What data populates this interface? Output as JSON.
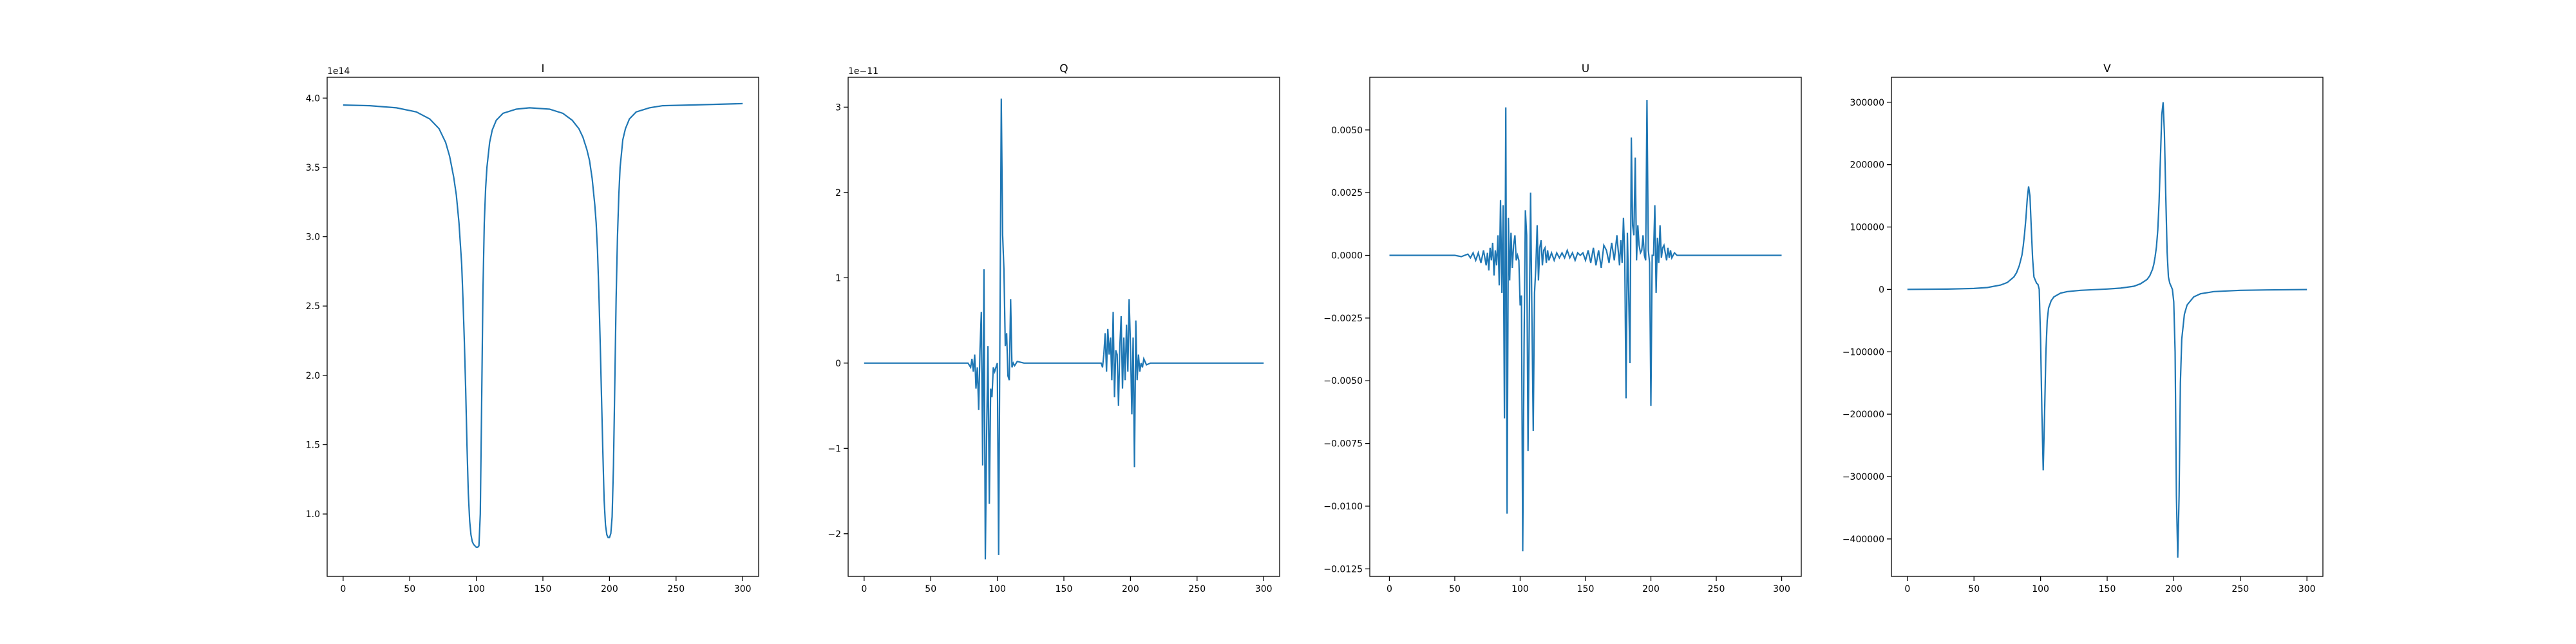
{
  "chart_data": [
    {
      "type": "line",
      "title": "I",
      "offset": "1e14",
      "xlim": [
        -12,
        312
      ],
      "ylim": [
        0.55,
        4.15
      ],
      "x_ticks": [
        0,
        50,
        100,
        150,
        200,
        250,
        300
      ],
      "x_tick_labels": [
        "0",
        "50",
        "100",
        "150",
        "200",
        "250",
        "300"
      ],
      "y_ticks": [
        1.0,
        1.5,
        2.0,
        2.5,
        3.0,
        3.5,
        4.0
      ],
      "y_tick_labels": [
        "1.0",
        "1.5",
        "2.0",
        "2.5",
        "3.0",
        "3.5",
        "4.0"
      ],
      "series": [
        {
          "color": "#1f77b4",
          "x": [
            0,
            20,
            40,
            55,
            65,
            72,
            77,
            80,
            83,
            85,
            87,
            89,
            90,
            91,
            92,
            93,
            94,
            95,
            96,
            97,
            98,
            99,
            100,
            101,
            102,
            103,
            104,
            105,
            106,
            107,
            108,
            110,
            112,
            115,
            120,
            130,
            140,
            155,
            165,
            172,
            177,
            180,
            183,
            185,
            187,
            189,
            190,
            191,
            192,
            193,
            194,
            195,
            196,
            197,
            198,
            199,
            200,
            201,
            202,
            203,
            204,
            205,
            206,
            207,
            208,
            210,
            212,
            215,
            220,
            230,
            240,
            260,
            280,
            300
          ],
          "values": [
            3.95,
            3.945,
            3.93,
            3.9,
            3.85,
            3.78,
            3.68,
            3.58,
            3.43,
            3.3,
            3.1,
            2.8,
            2.55,
            2.25,
            1.9,
            1.5,
            1.15,
            0.95,
            0.85,
            0.8,
            0.78,
            0.77,
            0.76,
            0.76,
            0.77,
            1.0,
            1.8,
            2.6,
            3.1,
            3.35,
            3.5,
            3.68,
            3.77,
            3.84,
            3.89,
            3.92,
            3.93,
            3.92,
            3.89,
            3.84,
            3.78,
            3.72,
            3.63,
            3.55,
            3.42,
            3.23,
            3.1,
            2.9,
            2.6,
            2.25,
            1.85,
            1.45,
            1.1,
            0.92,
            0.85,
            0.83,
            0.83,
            0.86,
            0.98,
            1.35,
            1.95,
            2.55,
            3.0,
            3.3,
            3.5,
            3.7,
            3.78,
            3.85,
            3.9,
            3.93,
            3.945,
            3.95,
            3.955,
            3.96
          ]
        }
      ]
    },
    {
      "type": "line",
      "title": "Q",
      "offset": "1e−11",
      "xlim": [
        -12,
        312
      ],
      "ylim": [
        -2.5,
        3.35
      ],
      "x_ticks": [
        0,
        50,
        100,
        150,
        200,
        250,
        300
      ],
      "x_tick_labels": [
        "0",
        "50",
        "100",
        "150",
        "200",
        "250",
        "300"
      ],
      "y_ticks": [
        -2,
        -1,
        0,
        1,
        2,
        3
      ],
      "y_tick_labels": [
        "−2",
        "−1",
        "0",
        "1",
        "2",
        "3"
      ],
      "series": [
        {
          "color": "#1f77b4",
          "x": [
            0,
            40,
            70,
            78,
            80,
            81,
            82,
            83,
            84,
            85,
            86,
            87,
            88,
            89,
            90,
            91,
            92,
            93,
            94,
            95,
            96,
            97,
            98,
            99,
            100,
            101,
            102,
            103,
            104,
            105,
            106,
            107,
            108,
            109,
            110,
            111,
            112,
            113,
            115,
            120,
            130,
            150,
            170,
            178,
            179,
            180,
            181,
            182,
            183,
            184,
            185,
            186,
            187,
            188,
            189,
            190,
            191,
            192,
            193,
            194,
            195,
            196,
            197,
            198,
            199,
            200,
            201,
            202,
            203,
            204,
            205,
            206,
            207,
            208,
            209,
            210,
            212,
            215,
            220,
            240,
            270,
            300
          ],
          "values": [
            0,
            0,
            0,
            0.0,
            -0.05,
            0.05,
            -0.1,
            0.1,
            -0.3,
            -0.05,
            -0.55,
            0.15,
            0.6,
            -1.2,
            1.1,
            -2.3,
            -0.8,
            0.2,
            -1.65,
            -0.3,
            -0.4,
            -0.05,
            -0.1,
            -0.05,
            0.0,
            -2.25,
            0.4,
            3.1,
            1.5,
            1.1,
            0.2,
            0.35,
            -0.15,
            -0.2,
            0.75,
            -0.05,
            0.0,
            -0.03,
            0.02,
            0.0,
            0.0,
            0.0,
            0.0,
            0.0,
            -0.05,
            0.1,
            0.35,
            -0.1,
            0.4,
            0.1,
            0.3,
            -0.2,
            0.6,
            -0.4,
            0.15,
            0.1,
            -0.5,
            0.2,
            0.55,
            -0.3,
            0.3,
            -0.2,
            0.45,
            -0.1,
            0.75,
            0.2,
            -0.6,
            0.3,
            -1.22,
            0.5,
            -0.2,
            0.1,
            -0.1,
            0.0,
            -0.05,
            0.05,
            -0.02,
            0.0,
            0.0,
            0.0,
            0.0,
            0.0
          ]
        }
      ]
    },
    {
      "type": "line",
      "title": "U",
      "offset": "",
      "xlim": [
        -15,
        315
      ],
      "ylim": [
        -0.0128,
        0.0071
      ],
      "x_ticks": [
        0,
        50,
        100,
        150,
        200,
        250,
        300
      ],
      "x_tick_labels": [
        "0",
        "50",
        "100",
        "150",
        "200",
        "250",
        "300"
      ],
      "y_ticks": [
        -0.0125,
        -0.01,
        -0.0075,
        -0.005,
        -0.0025,
        0.0,
        0.0025,
        0.005
      ],
      "y_tick_labels": [
        "−0.0125",
        "−0.0100",
        "−0.0075",
        "−0.0050",
        "−0.0025",
        "0.0000",
        "0.0025",
        "0.0050"
      ],
      "series": [
        {
          "color": "#1f77b4",
          "x": [
            0,
            10,
            20,
            30,
            40,
            50,
            55,
            60,
            62,
            64,
            66,
            68,
            70,
            72,
            74,
            75,
            76,
            77,
            78,
            79,
            80,
            81,
            82,
            83,
            84,
            85,
            86,
            87,
            88,
            89,
            90,
            91,
            92,
            93,
            94,
            95,
            96,
            97,
            98,
            99,
            100,
            101,
            102,
            103,
            104,
            105,
            106,
            107,
            108,
            109,
            110,
            111,
            112,
            113,
            114,
            115,
            116,
            117,
            118,
            119,
            120,
            121,
            122,
            124,
            126,
            128,
            130,
            132,
            134,
            136,
            138,
            140,
            142,
            144,
            146,
            148,
            150,
            152,
            154,
            156,
            158,
            160,
            162,
            164,
            166,
            168,
            170,
            172,
            174,
            176,
            177,
            178,
            179,
            180,
            181,
            182,
            183,
            184,
            185,
            186,
            187,
            188,
            189,
            190,
            191,
            192,
            193,
            194,
            195,
            196,
            197,
            198,
            199,
            200,
            201,
            202,
            203,
            204,
            205,
            206,
            207,
            208,
            209,
            210,
            211,
            212,
            213,
            214,
            215,
            216,
            218,
            220,
            225,
            230,
            240,
            260,
            280,
            300
          ],
          "values": [
            0.0,
            0.0,
            0.0,
            0.0,
            0.0,
            0.0,
            -5e-05,
            5e-05,
            -0.0001,
            0.0001,
            -0.0002,
            0.0001,
            -0.0003,
            0.0002,
            -0.0004,
            0.0001,
            -0.0006,
            0.0003,
            -0.0002,
            0.0005,
            -0.0008,
            0.0002,
            -0.0004,
            0.0008,
            -0.0012,
            0.0022,
            -0.0015,
            0.002,
            -0.0065,
            0.0059,
            -0.0103,
            0.0015,
            -0.001,
            0.0009,
            -0.0005,
            0.0004,
            0.0008,
            -0.0002,
            0.0,
            -0.0002,
            -0.002,
            -0.0016,
            -0.0118,
            -0.0035,
            0.0018,
            0.0008,
            -0.0078,
            -0.0025,
            0.0025,
            -0.0025,
            -0.007,
            -0.0015,
            -0.0005,
            0.0012,
            -0.001,
            0.0003,
            0.0006,
            -0.0004,
            0.0002,
            0.0003,
            -0.0003,
            0.0002,
            -0.0002,
            0.0001,
            -0.0002,
            0.0001,
            -0.0001,
            0.0001,
            -0.0001,
            0.0002,
            -0.0001,
            0.0001,
            -0.0002,
            0.0001,
            0.0,
            0.0001,
            -0.0002,
            0.0002,
            -0.0003,
            0.0003,
            -0.0004,
            0.0002,
            -0.0005,
            0.0004,
            0.0002,
            -0.0003,
            0.0005,
            -0.0002,
            0.0008,
            -0.0004,
            0.0006,
            -0.0003,
            0.0015,
            0.0,
            -0.0057,
            0.0009,
            -0.0015,
            -0.0043,
            0.0047,
            0.0012,
            0.0008,
            0.0039,
            -0.0002,
            0.0012,
            0.0004,
            0.0001,
            0.0002,
            0.0008,
            0.0,
            -0.0002,
            0.0062,
            0.0002,
            -0.0003,
            -0.006,
            0.0,
            0.0,
            0.002,
            -0.0015,
            0.0007,
            -0.0003,
            0.0012,
            -0.0001,
            0.0003,
            0.0004,
            0.0001,
            -0.0002,
            0.0003,
            -0.0001,
            0.0002,
            -0.0001,
            0.0001,
            0.0,
            0.0,
            0.0,
            0.0,
            0.0,
            0.0,
            0.0
          ]
        }
      ]
    },
    {
      "type": "line",
      "title": "V",
      "offset": "",
      "xlim": [
        -12,
        312
      ],
      "ylim": [
        -460000,
        340000
      ],
      "x_ticks": [
        0,
        50,
        100,
        150,
        200,
        250,
        300
      ],
      "x_tick_labels": [
        "0",
        "50",
        "100",
        "150",
        "200",
        "250",
        "300"
      ],
      "y_ticks": [
        -400000,
        -300000,
        -200000,
        -100000,
        0,
        100000,
        200000,
        300000
      ],
      "y_tick_labels": [
        "−400000",
        "−300000",
        "−200000",
        "−100000",
        "0",
        "100000",
        "200000",
        "300000"
      ],
      "series": [
        {
          "color": "#1f77b4",
          "x": [
            0,
            30,
            50,
            60,
            70,
            75,
            80,
            82,
            84,
            86,
            87,
            88,
            89,
            90,
            91,
            92,
            93,
            94,
            95,
            96,
            97,
            98,
            99,
            100,
            101,
            102,
            103,
            104,
            105,
            106,
            108,
            110,
            115,
            120,
            130,
            140,
            150,
            160,
            170,
            175,
            180,
            182,
            184,
            185,
            186,
            187,
            188,
            189,
            190,
            191,
            192,
            193,
            194,
            195,
            196,
            197,
            198,
            199,
            200,
            201,
            202,
            203,
            204,
            205,
            206,
            208,
            210,
            215,
            220,
            230,
            250,
            270,
            300
          ],
          "values": [
            0,
            500,
            1500,
            3000,
            7000,
            11000,
            20000,
            27000,
            38000,
            55000,
            70000,
            90000,
            115000,
            145000,
            165000,
            150000,
            100000,
            50000,
            20000,
            15000,
            10000,
            8000,
            0,
            -80000,
            -200000,
            -290000,
            -200000,
            -100000,
            -50000,
            -30000,
            -18000,
            -12000,
            -6000,
            -3500,
            -1500,
            -400,
            600,
            2000,
            5000,
            9000,
            16000,
            22000,
            32000,
            40000,
            52000,
            68000,
            95000,
            140000,
            210000,
            280000,
            300000,
            250000,
            150000,
            60000,
            20000,
            10000,
            5000,
            0,
            -20000,
            -100000,
            -330000,
            -430000,
            -330000,
            -150000,
            -80000,
            -40000,
            -25000,
            -12000,
            -7000,
            -3500,
            -1500,
            -800,
            -200
          ]
        }
      ]
    }
  ]
}
